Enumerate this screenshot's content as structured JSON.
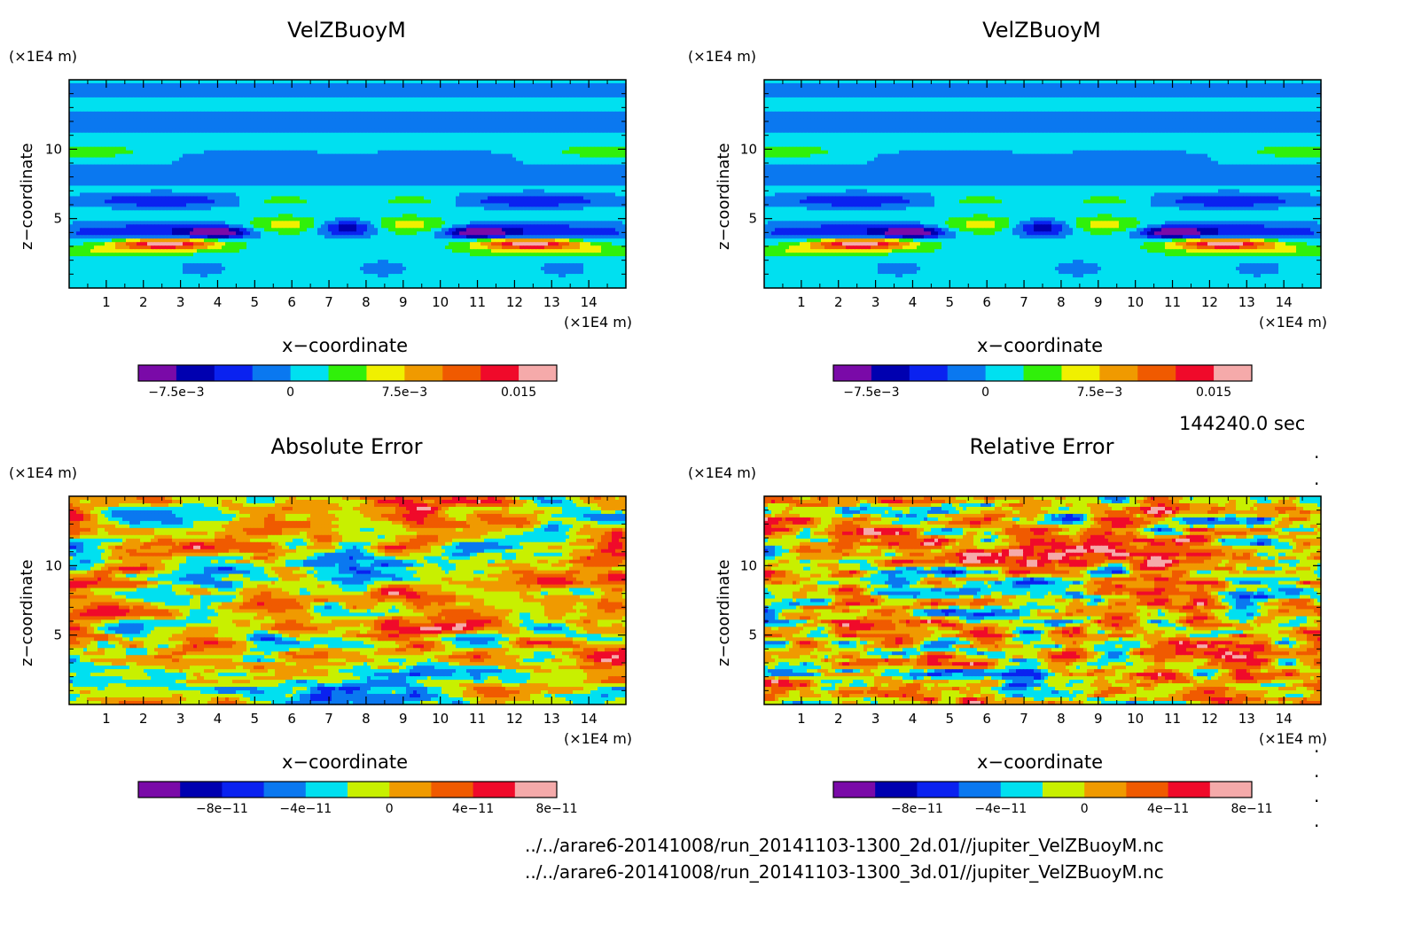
{
  "figure": {
    "time_label": "144240.0 sec",
    "files": [
      "../../arare6-20141008/run_20141103-1300_2d.01//jupiter_VelZBuoyM.nc",
      "../../arare6-20141008/run_20141103-1300_3d.01//jupiter_VelZBuoyM.nc"
    ],
    "dots": [
      ".",
      ".",
      ".",
      ".",
      ".",
      "."
    ]
  },
  "chart_data": [
    {
      "type": "heatmap",
      "title": "VelZBuoyM",
      "xlabel": "x−coordinate",
      "ylabel": "z−coordinate",
      "x_unit": "(×1E4 m)",
      "y_unit": "(×1E4 m)",
      "xlim": [
        0,
        15
      ],
      "ylim": [
        0,
        15
      ],
      "x_ticks": [
        "1",
        "2",
        "3",
        "4",
        "5",
        "6",
        "7",
        "8",
        "9",
        "10",
        "11",
        "12",
        "13",
        "14"
      ],
      "y_ticks": [
        "5",
        "10"
      ],
      "colorbar": {
        "levels": [
          -0.01,
          -0.0075,
          -0.005,
          -0.0025,
          0,
          0.0025,
          0.005,
          0.0075,
          0.01,
          0.0125,
          0.015
        ],
        "colors": [
          "#7a0aa8",
          "#0000b0",
          "#0a22f0",
          "#0a78f0",
          "#00e0f0",
          "#30f00a",
          "#f0f000",
          "#f09a00",
          "#f05a00",
          "#f00a2a",
          "#f5aaaa"
        ],
        "tick_labels": [
          "−7.5e−3",
          "0",
          "7.5e−3",
          "0.015"
        ],
        "tick_values": [
          -0.0075,
          0,
          0.0075,
          0.015
        ]
      }
    },
    {
      "type": "heatmap",
      "title": "VelZBuoyM",
      "xlabel": "x−coordinate",
      "ylabel": "z−coordinate",
      "x_unit": "(×1E4 m)",
      "y_unit": "(×1E4 m)",
      "xlim": [
        0,
        15
      ],
      "ylim": [
        0,
        15
      ],
      "x_ticks": [
        "1",
        "2",
        "3",
        "4",
        "5",
        "6",
        "7",
        "8",
        "9",
        "10",
        "11",
        "12",
        "13",
        "14"
      ],
      "y_ticks": [
        "5",
        "10"
      ],
      "colorbar": {
        "levels": [
          -0.01,
          -0.0075,
          -0.005,
          -0.0025,
          0,
          0.0025,
          0.005,
          0.0075,
          0.01,
          0.0125,
          0.015
        ],
        "colors": [
          "#7a0aa8",
          "#0000b0",
          "#0a22f0",
          "#0a78f0",
          "#00e0f0",
          "#30f00a",
          "#f0f000",
          "#f09a00",
          "#f05a00",
          "#f00a2a",
          "#f5aaaa"
        ],
        "tick_labels": [
          "−7.5e−3",
          "0",
          "7.5e−3",
          "0.015"
        ],
        "tick_values": [
          -0.0075,
          0,
          0.0075,
          0.015
        ]
      }
    },
    {
      "type": "heatmap",
      "title": "Absolute Error",
      "xlabel": "x−coordinate",
      "ylabel": "z−coordinate",
      "x_unit": "(×1E4 m)",
      "y_unit": "(×1E4 m)",
      "xlim": [
        0,
        15
      ],
      "ylim": [
        0,
        15
      ],
      "x_ticks": [
        "1",
        "2",
        "3",
        "4",
        "5",
        "6",
        "7",
        "8",
        "9",
        "10",
        "11",
        "12",
        "13",
        "14"
      ],
      "y_ticks": [
        "5",
        "10"
      ],
      "colorbar": {
        "levels": [
          -1.2e-10,
          -1e-10,
          -8e-11,
          -6e-11,
          -4e-11,
          -2e-11,
          0,
          2e-11,
          4e-11,
          6e-11,
          8e-11,
          1e-10
        ],
        "colors": [
          "#7a0aa8",
          "#0000b0",
          "#0a22f0",
          "#0a78f0",
          "#00e0f0",
          "#c8f000",
          "#f09a00",
          "#f05a00",
          "#f00a2a",
          "#f5aaaa"
        ],
        "tick_labels": [
          "−8e−11",
          "−4e−11",
          "0",
          "4e−11",
          "8e−11"
        ],
        "tick_values": [
          -8e-11,
          -4e-11,
          0,
          4e-11,
          8e-11
        ]
      }
    },
    {
      "type": "heatmap",
      "title": "Relative Error",
      "xlabel": "x−coordinate",
      "ylabel": "z−coordinate",
      "x_unit": "(×1E4 m)",
      "y_unit": "(×1E4 m)",
      "xlim": [
        0,
        15
      ],
      "ylim": [
        0,
        15
      ],
      "x_ticks": [
        "1",
        "2",
        "3",
        "4",
        "5",
        "6",
        "7",
        "8",
        "9",
        "10",
        "11",
        "12",
        "13",
        "14"
      ],
      "y_ticks": [
        "5",
        "10"
      ],
      "colorbar": {
        "levels": [
          -1.2e-10,
          -1e-10,
          -8e-11,
          -6e-11,
          -4e-11,
          -2e-11,
          0,
          2e-11,
          4e-11,
          6e-11,
          8e-11,
          1e-10
        ],
        "colors": [
          "#7a0aa8",
          "#0000b0",
          "#0a22f0",
          "#0a78f0",
          "#00e0f0",
          "#c8f000",
          "#f09a00",
          "#f05a00",
          "#f00a2a",
          "#f5aaaa"
        ],
        "tick_labels": [
          "−8e−11",
          "−4e−11",
          "0",
          "4e−11",
          "8e−11"
        ],
        "tick_values": [
          -8e-11,
          -4e-11,
          0,
          4e-11,
          8e-11
        ]
      }
    }
  ]
}
